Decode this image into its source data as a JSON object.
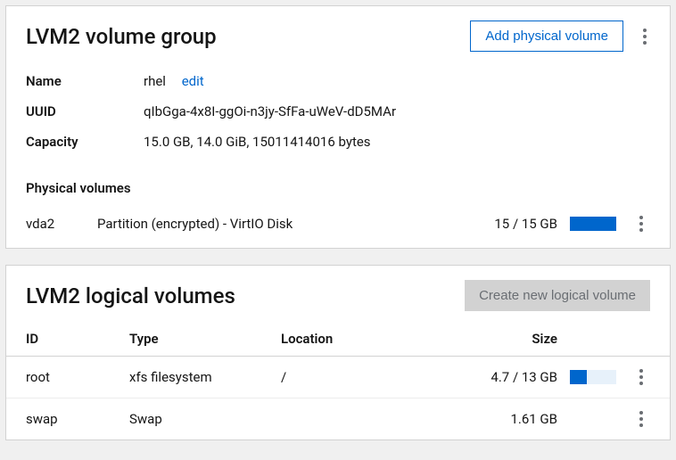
{
  "colors": {
    "accent": "#0066cc",
    "bar_bg": "#e7f1fa",
    "btn_disabled_bg": "#d2d2d2",
    "btn_disabled_text": "#6a6e73"
  },
  "vg": {
    "title": "LVM2 volume group",
    "add_btn": "Add physical volume",
    "labels": {
      "name": "Name",
      "uuid": "UUID",
      "capacity": "Capacity",
      "pv_section": "Physical volumes"
    },
    "name": "rhel",
    "edit": "edit",
    "uuid": "qIbGga-4x8I-ggOi-n3jy-SfFa-uWeV-dD5MAr",
    "capacity": "15.0 GB, 14.0 GiB, 15011414016 bytes",
    "pv": {
      "id": "vda2",
      "desc": "Partition (encrypted) - VirtIO Disk",
      "size": "15 / 15 GB",
      "fill_pct": 100
    }
  },
  "lv": {
    "title": "LVM2 logical volumes",
    "create_btn": "Create new logical volume",
    "headers": {
      "id": "ID",
      "type": "Type",
      "location": "Location",
      "size": "Size"
    },
    "rows": [
      {
        "id": "root",
        "type": "xfs filesystem",
        "location": "/",
        "size": "4.7 / 13 GB",
        "fill_pct": 36,
        "has_bar": true
      },
      {
        "id": "swap",
        "type": "Swap",
        "location": "",
        "size": "1.61 GB",
        "fill_pct": 0,
        "has_bar": false
      }
    ]
  }
}
